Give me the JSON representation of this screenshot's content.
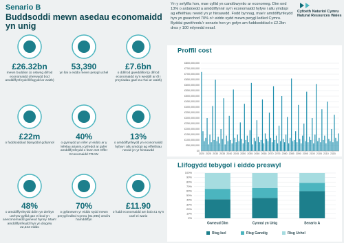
{
  "header": {
    "kicker": "Senario B",
    "title": "Buddsoddi mewn asedau economaidd yn unig"
  },
  "intro": "Yn y sefyllfa hon, mae cyllid yn canolbwyntio ar economeg. Dim ond 13% o ardaloedd a amddiffynnir sy'n economaidd hyfyw i allu ymdopi ag effeithiau newid yn yr hinsawdd. Fodd bynnag, mae'r amddiffynfeydd hyn yn gwarchod 70% o'r eiddo sydd mewn perygl ledled Cymru. Byddai gweithredu'r senario hon yn gofyn am fuddsoddiad o £2.2bn dros y 100 mlynedd nesaf.",
  "logo": {
    "welsh": "Cyfoeth Naturiol Cymru",
    "english": "Natural Resources Wales"
  },
  "stats": [
    {
      "value": "£26.32bn",
      "text": "mewn buddion (o ostwng difrod economaidd oherwydd bod amddiffynfeydd llifogydd ar waith)"
    },
    {
      "value": "53,390",
      "text": "yn llai o eiddo mewn perygl uchel"
    },
    {
      "value": "£7.6bn",
      "text": "o ddifrod gweddilliol (y difrod economaidd sy'n weddill ar ôl i ymyriadau gael eu rhoi ar waith)"
    },
    {
      "value": "£22m",
      "text": "o fuddsoddiad blynyddol gofynnol"
    },
    {
      "value": "40%",
      "text": "o gynnydd yn nifer yr eiddo ar y lefelau ariannu cyfredol ar gyfer amddiffynfeydd o fewn Set Offer Economaidd FRAW"
    },
    {
      "value": "13%",
      "text": "o amddiffynfeydd yn economaidd hyfyw i allu ymdopi ag effeithiau newid yn yr hinsawdd"
    },
    {
      "value": "48%",
      "text": "o amddiffynfeydd ddim yn derbyn unrhyw gyllid gan ei bod yn aneconomaidd gwneud hynny. Mae'r amddiffynfeydd hyn yn diogelu 22,343 eiddo"
    },
    {
      "value": "70%",
      "text": "o gyfanswm yr eiddo sydd mewn perygl ledled Cymru (81,985) wedi'u hamddiffyn"
    },
    {
      "value": "£11.90",
      "text": "o fudd economaidd am bob £1 sy'n cael ei wario"
    }
  ],
  "chart_data": [
    {
      "type": "bar",
      "title": "Proffil cost",
      "color": "#1f8fae",
      "grid": true,
      "x": [
        2020,
        2021,
        2022,
        2023,
        2024,
        2025,
        2026,
        2027,
        2028,
        2029,
        2030,
        2031,
        2032,
        2033,
        2034,
        2035,
        2036,
        2037,
        2038,
        2039,
        2040,
        2041,
        2042,
        2043,
        2044,
        2045,
        2046,
        2047,
        2048,
        2049,
        2050,
        2051,
        2052,
        2053,
        2054,
        2055,
        2056,
        2057,
        2058,
        2059,
        2060,
        2061,
        2062,
        2063,
        2064,
        2065,
        2066,
        2067,
        2068,
        2069,
        2070,
        2071,
        2072,
        2073,
        2074,
        2075,
        2076,
        2077,
        2078,
        2079,
        2080,
        2081,
        2082,
        2083,
        2084,
        2085,
        2086,
        2087,
        2088,
        2089,
        2090,
        2091,
        2092,
        2093,
        2094,
        2095,
        2096,
        2097,
        2098,
        2099,
        2100,
        2101,
        2102,
        2103,
        2104,
        2105,
        2106,
        2107,
        2108,
        2109,
        2110,
        2111,
        2112,
        2113,
        2114,
        2115,
        2116,
        2117,
        2118,
        2119
      ],
      "values": [
        720000000,
        180000000,
        90000000,
        120000000,
        300000000,
        60000000,
        150000000,
        80000000,
        410000000,
        100000000,
        650000000,
        90000000,
        130000000,
        70000000,
        200000000,
        110000000,
        480000000,
        60000000,
        140000000,
        90000000,
        320000000,
        100000000,
        70000000,
        560000000,
        120000000,
        80000000,
        150000000,
        90000000,
        260000000,
        110000000,
        70000000,
        430000000,
        100000000,
        140000000,
        80000000,
        190000000,
        620000000,
        60000000,
        120000000,
        90000000,
        280000000,
        130000000,
        80000000,
        100000000,
        470000000,
        70000000,
        160000000,
        110000000,
        90000000,
        350000000,
        120000000,
        80000000,
        590000000,
        100000000,
        140000000,
        70000000,
        230000000,
        90000000,
        500000000,
        110000000,
        80000000,
        150000000,
        310000000,
        70000000,
        120000000,
        660000000,
        90000000,
        100000000,
        180000000,
        80000000,
        420000000,
        110000000,
        70000000,
        140000000,
        250000000,
        90000000,
        540000000,
        80000000,
        130000000,
        100000000,
        300000000,
        70000000,
        150000000,
        610000000,
        90000000,
        120000000,
        80000000,
        380000000,
        100000000,
        140000000,
        70000000,
        450000000,
        110000000,
        90000000,
        200000000,
        80000000,
        330000000,
        120000000,
        90000000,
        160000000
      ],
      "xlim": [
        2019.5,
        2119.5
      ],
      "xticks": [
        2020,
        2025,
        2030,
        2035,
        2040,
        2045,
        2050,
        2055,
        2060,
        2065,
        2070,
        2075,
        2080,
        2085,
        2090,
        2095,
        2100,
        2105,
        2110,
        2115
      ],
      "ylim": [
        0,
        800000000
      ],
      "yticks": [
        {
          "value": 0,
          "label": "£0"
        },
        {
          "value": 50000000,
          "label": "£50,000,000"
        },
        {
          "value": 100000000,
          "label": "£100,000,000"
        },
        {
          "value": 150000000,
          "label": "£150,000,000"
        },
        {
          "value": 200000000,
          "label": "£200,000,000"
        },
        {
          "value": 250000000,
          "label": "£250,000,000"
        },
        {
          "value": 300000000,
          "label": "£300,000,000"
        },
        {
          "value": 350000000,
          "label": "£350,000,000"
        },
        {
          "value": 400000000,
          "label": "£400,000,000"
        },
        {
          "value": 450000000,
          "label": "£450,000,000"
        },
        {
          "value": 500000000,
          "label": "£500,000,000"
        },
        {
          "value": 550000000,
          "label": "£550,000,000"
        },
        {
          "value": 600000000,
          "label": "£600,000,000"
        },
        {
          "value": 650000000,
          "label": "£650,000,000"
        },
        {
          "value": 700000000,
          "label": "£700,000,000"
        },
        {
          "value": 750000000,
          "label": "£750,000,000"
        },
        {
          "value": 800000000,
          "label": "£800,000,000"
        }
      ]
    },
    {
      "type": "stacked-bar",
      "title": "Llifogydd tebygol i eiddo preswyl",
      "grid": true,
      "legend": "bottom",
      "categories": [
        "Gwneud Dim",
        "Cynnal yn Unig",
        "Senario A"
      ],
      "series": [
        {
          "name": "Risg Isel",
          "color": "#1d7f8c",
          "values": [
            42,
            45,
            60
          ]
        },
        {
          "name": "Risg Ganolig",
          "color": "#4bb5bf",
          "values": [
            23,
            22,
            18
          ]
        },
        {
          "name": "Risg Uchel",
          "color": "#a6dce0",
          "values": [
            35,
            33,
            22
          ]
        }
      ],
      "ylim": [
        0,
        100
      ],
      "yticks": [
        {
          "value": 0,
          "label": "0%"
        },
        {
          "value": 10,
          "label": "10%"
        },
        {
          "value": 20,
          "label": "20%"
        },
        {
          "value": 30,
          "label": "30%"
        },
        {
          "value": 40,
          "label": "40%"
        },
        {
          "value": 50,
          "label": "50%"
        },
        {
          "value": 60,
          "label": "60%"
        },
        {
          "value": 70,
          "label": "70%"
        },
        {
          "value": 80,
          "label": "80%"
        },
        {
          "value": 90,
          "label": "90%"
        },
        {
          "value": 100,
          "label": "100%"
        }
      ]
    }
  ]
}
